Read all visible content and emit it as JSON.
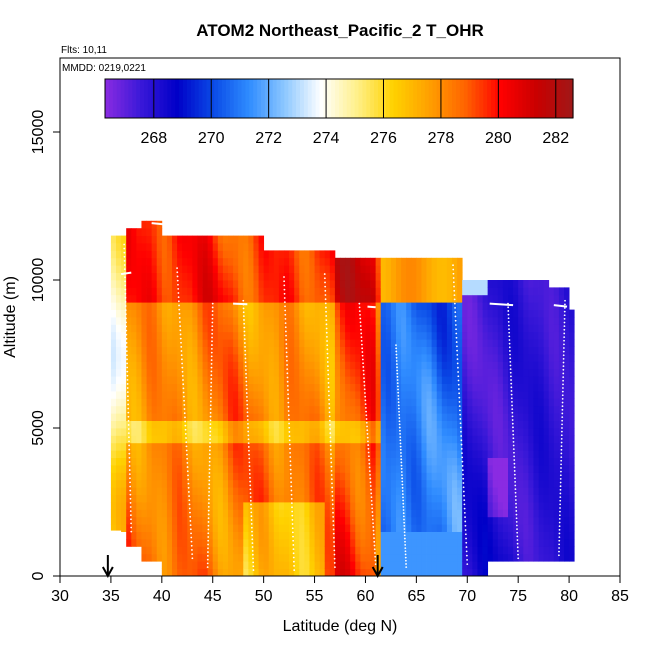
{
  "chart_data": {
    "type": "heatmap",
    "title": "ATOM2 Northeast_Pacific_2 T_OHR",
    "flights_label": "Flts: 10,11",
    "dates_label": "MMDD: 0219,0221",
    "xlabel": "Latitude (deg N)",
    "ylabel": "Altitude (m)",
    "xlim": [
      30,
      85
    ],
    "ylim": [
      0,
      17500
    ],
    "xticks": [
      "30",
      "35",
      "40",
      "45",
      "50",
      "55",
      "60",
      "65",
      "70",
      "75",
      "80",
      "85"
    ],
    "yticks": [
      "0",
      "5000",
      "10000",
      "15000"
    ],
    "colorbar": {
      "min": 266.3,
      "max": 282.6,
      "ticks": [
        "268",
        "270",
        "272",
        "274",
        "276",
        "278",
        "280",
        "282"
      ],
      "colors": [
        "#8a2be2",
        "#3a18d8",
        "#0000c8",
        "#0a4ae6",
        "#2f8cff",
        "#8ec8ff",
        "#ffffff",
        "#fff08a",
        "#ffd200",
        "#ffa000",
        "#ff6400",
        "#ff0000",
        "#c80000",
        "#a01818"
      ]
    },
    "arrows_latitude": [
      34.7,
      61.2
    ],
    "field_description_points": [
      {
        "lat": 36,
        "temp": 276
      },
      {
        "lat": 40,
        "temp": 279
      },
      {
        "lat": 45,
        "temp": 278
      },
      {
        "lat": 50,
        "temp": 279
      },
      {
        "lat": 55,
        "temp": 279
      },
      {
        "lat": 60,
        "temp": 281
      },
      {
        "lat": 65,
        "temp": 271
      },
      {
        "lat": 70,
        "temp": 270
      },
      {
        "lat": 75,
        "temp": 268
      },
      {
        "lat": 80,
        "temp": 268
      }
    ]
  }
}
